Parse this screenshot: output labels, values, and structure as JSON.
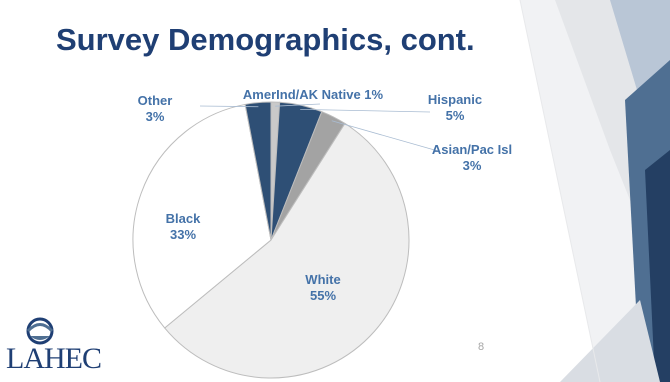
{
  "slide": {
    "title": "Survey Demographics, cont.",
    "number": "8",
    "logo_text": "LAHEC",
    "colors": {
      "title": "#1f3f74",
      "label": "#4472a8",
      "accent_dark": "#243f63",
      "accent_mid": "#4f6f92"
    }
  },
  "chart_data": {
    "type": "pie",
    "title": "",
    "slices": [
      {
        "label": "AmerInd/AK Native",
        "value": 1,
        "display": "1%",
        "color": "#c9c9c9"
      },
      {
        "label": "Hispanic",
        "value": 5,
        "display": "5%",
        "color": "#2e4f75"
      },
      {
        "label": "Asian/Pac Isl",
        "value": 3,
        "display": "3%",
        "color": "#a3a3a3"
      },
      {
        "label": "White",
        "value": 55,
        "display": "55%",
        "color": "#efefef"
      },
      {
        "label": "Black",
        "value": 33,
        "display": "33%",
        "color": "#ffffff"
      },
      {
        "label": "Other",
        "value": 3,
        "display": "3%",
        "color": "#2e4f75"
      }
    ]
  }
}
